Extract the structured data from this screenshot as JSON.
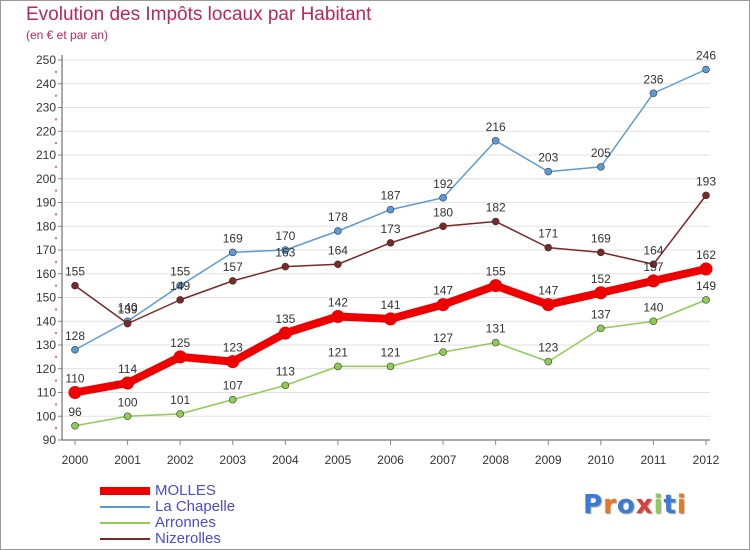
{
  "title": "Evolution des Impôts locaux par Habitant",
  "subtitle": "(en € et par an)",
  "logo_text": "Proxiti",
  "chart_data": {
    "type": "line",
    "title": "Evolution des Impôts locaux par Habitant",
    "subtitle": "(en € et par an)",
    "xlabel": "",
    "ylabel": "",
    "x": [
      2000,
      2001,
      2002,
      2003,
      2004,
      2005,
      2006,
      2007,
      2008,
      2009,
      2010,
      2011,
      2012
    ],
    "ylim": [
      90,
      250
    ],
    "yticks": [
      90,
      100,
      110,
      120,
      130,
      140,
      150,
      160,
      170,
      180,
      190,
      200,
      210,
      220,
      230,
      240,
      250
    ],
    "grid": "horizontal",
    "legend_position": "bottom-left",
    "series": [
      {
        "name": "MOLLES",
        "color": "#ee0000",
        "emphasis": true,
        "values": [
          110,
          114,
          125,
          123,
          135,
          142,
          141,
          147,
          155,
          147,
          152,
          157,
          162
        ]
      },
      {
        "name": "La Chapelle",
        "color": "#5b9bd5",
        "emphasis": false,
        "values": [
          128,
          140,
          155,
          169,
          170,
          178,
          187,
          192,
          216,
          203,
          205,
          236,
          246
        ]
      },
      {
        "name": "Arronnes",
        "color": "#8ecc52",
        "emphasis": false,
        "values": [
          96,
          100,
          101,
          107,
          113,
          121,
          121,
          127,
          131,
          123,
          137,
          140,
          149
        ]
      },
      {
        "name": "Nizerolles",
        "color": "#7a2828",
        "emphasis": false,
        "values": [
          155,
          139,
          149,
          157,
          163,
          164,
          173,
          180,
          182,
          171,
          169,
          164,
          193
        ]
      }
    ]
  }
}
